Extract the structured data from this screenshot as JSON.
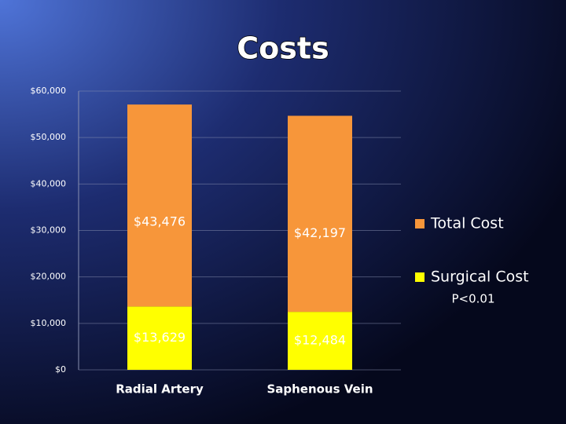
{
  "chart_data": {
    "type": "stacked-bar",
    "title": "Costs",
    "categories": [
      "Radial Artery",
      "Saphenous Vein"
    ],
    "series": [
      {
        "name": "Surgical Cost",
        "color": "#ffff00",
        "values": [
          13629,
          12484
        ],
        "value_labels": [
          "$13,629",
          "$12,484"
        ]
      },
      {
        "name": "Total Cost",
        "color": "#f7963a",
        "values": [
          43476,
          42197
        ],
        "value_labels": [
          "$43,476",
          "$42,197"
        ]
      }
    ],
    "ylim": [
      0,
      60000
    ],
    "yticks": [
      {
        "value": 0,
        "label": "$0"
      },
      {
        "value": 10000,
        "label": "$10,000"
      },
      {
        "value": 20000,
        "label": "$20,000"
      },
      {
        "value": 30000,
        "label": "$30,000"
      },
      {
        "value": 40000,
        "label": "$40,000"
      },
      {
        "value": 50000,
        "label": "$50,000"
      },
      {
        "value": 60000,
        "label": "$60,000"
      }
    ],
    "grid": true,
    "legend": "right",
    "annotation": "P<0.01"
  }
}
